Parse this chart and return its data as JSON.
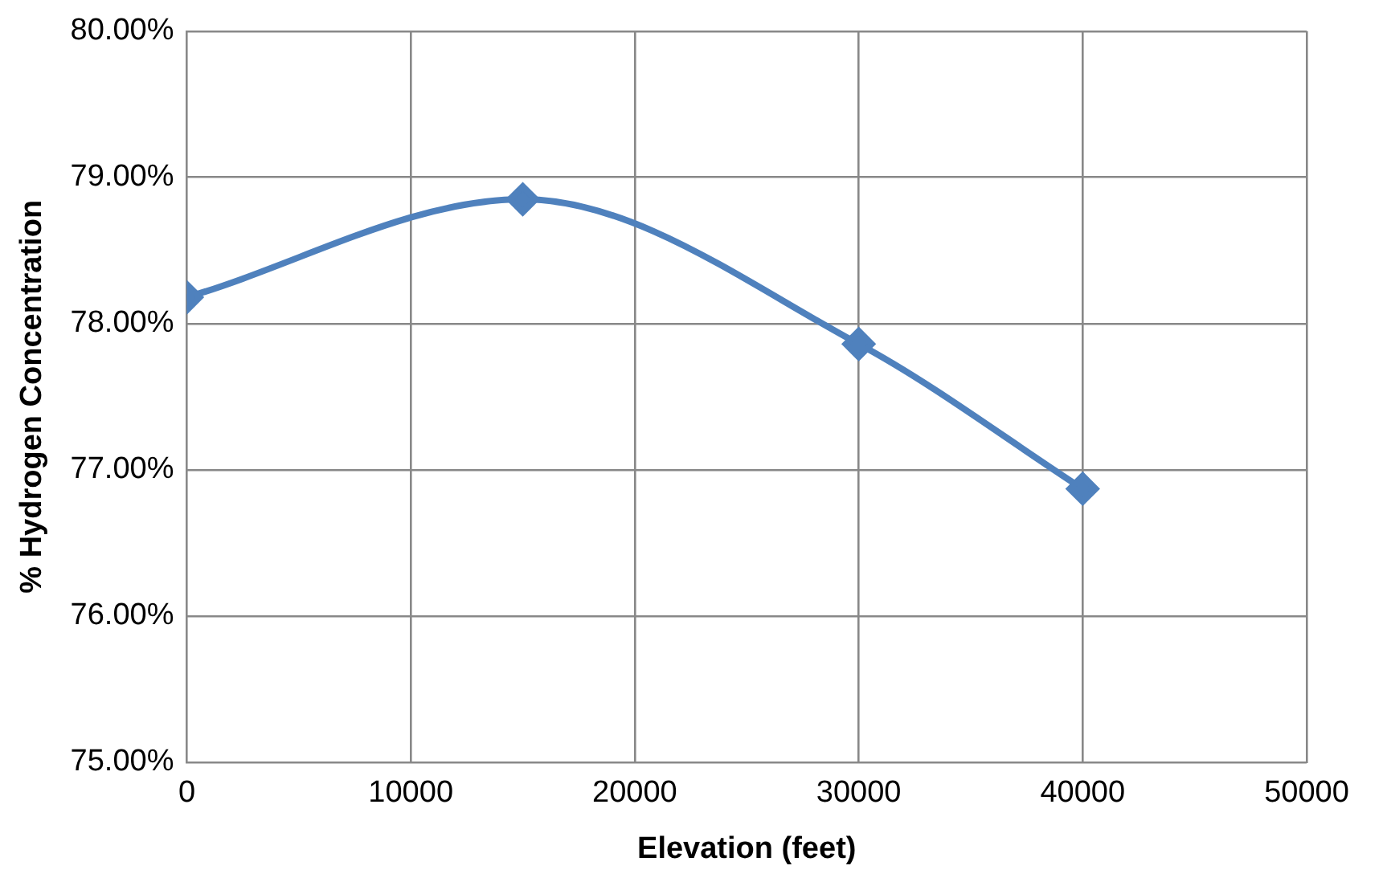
{
  "chart_data": {
    "type": "line",
    "xlabel": "Elevation (feet)",
    "ylabel": "% Hydrogen Concentration",
    "x": [
      0,
      15000,
      30000,
      40000
    ],
    "series": [
      {
        "color": "#4f81bd",
        "values": [
          78.18,
          78.85,
          77.86,
          76.87
        ]
      }
    ],
    "xlim": [
      0,
      50000
    ],
    "xticks": [
      0,
      10000,
      20000,
      30000,
      40000,
      50000
    ],
    "ylim": [
      75,
      80
    ],
    "yticks": [
      {
        "value": 75,
        "label": "75.00%"
      },
      {
        "value": 76,
        "label": "76.00%"
      },
      {
        "value": 77,
        "label": "77.00%"
      },
      {
        "value": 78,
        "label": "78.00%"
      },
      {
        "value": 79,
        "label": "79.00%"
      },
      {
        "value": 80,
        "label": "80.00%"
      }
    ],
    "grid": true,
    "legend": false,
    "marker": "diamond",
    "line_style": "solid"
  }
}
